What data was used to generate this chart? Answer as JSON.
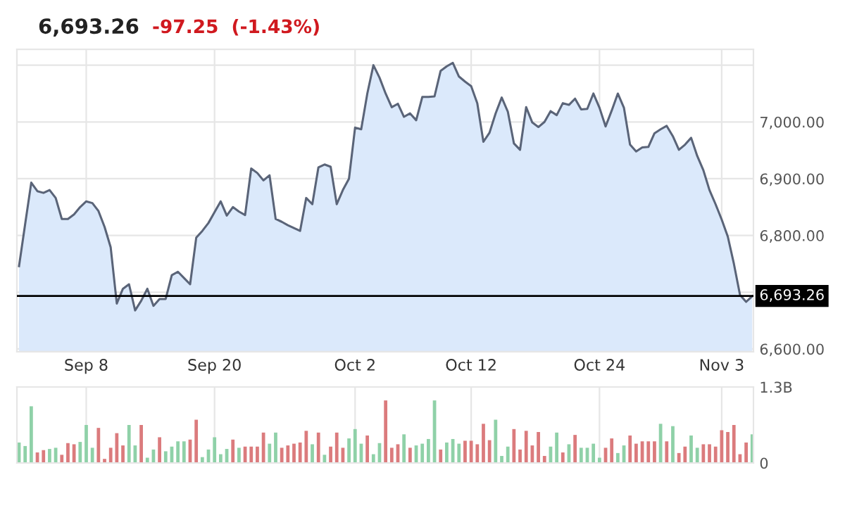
{
  "chart_data": [
    {
      "type": "area",
      "title": "6,693.26",
      "annotations": [
        "-97.25",
        "(-1.43%)"
      ],
      "categories": [
        null,
        null,
        null,
        null,
        null,
        null,
        null,
        null,
        null,
        null,
        null,
        "Sep 8",
        null,
        null,
        null,
        null,
        null,
        null,
        null,
        null,
        null,
        null,
        null,
        null,
        null,
        null,
        null,
        null,
        null,
        null,
        null,
        null,
        "Sep 20",
        null,
        null,
        null,
        null,
        null,
        null,
        null,
        null,
        null,
        null,
        null,
        null,
        null,
        null,
        null,
        null,
        null,
        null,
        null,
        null,
        null,
        null,
        "Oct 2",
        null,
        null,
        null,
        null,
        null,
        null,
        null,
        null,
        null,
        null,
        null,
        null,
        null,
        null,
        null,
        null,
        null,
        null,
        "Oct 12",
        null,
        null,
        null,
        null,
        null,
        null,
        null,
        null,
        null,
        null,
        null,
        null,
        null,
        null,
        null,
        null,
        null,
        null,
        null,
        null,
        "Oct 24",
        null,
        null,
        null,
        null,
        null,
        null,
        null,
        null,
        null,
        null,
        null,
        null,
        null,
        null,
        null,
        null,
        null,
        null,
        null,
        "Nov 3",
        null,
        null,
        null,
        null,
        null
      ],
      "series": [
        {
          "color": "#5a6478",
          "values": [
            6746,
            6820,
            6893,
            6878,
            6875,
            6880,
            6866,
            6829,
            6829,
            6837,
            6850,
            6860,
            6857,
            6843,
            6815,
            6779,
            6680,
            6706,
            6714,
            6668,
            6685,
            6706,
            6676,
            6688,
            6688,
            6730,
            6736,
            6725,
            6714,
            6796,
            6808,
            6822,
            6841,
            6860,
            6835,
            6850,
            6842,
            6836,
            6918,
            6910,
            6897,
            6906,
            6829,
            6824,
            6818,
            6813,
            6808,
            6866,
            6855,
            6920,
            6925,
            6921,
            6855,
            6880,
            6900,
            6990,
            6987,
            7050,
            7100,
            7078,
            7050,
            7026,
            7032,
            7009,
            7015,
            7003,
            7044,
            7044,
            7045,
            7090,
            7098,
            7104,
            7080,
            7071,
            7063,
            7033,
            6965,
            6981,
            7015,
            7043,
            7018,
            6962,
            6951,
            7026,
            6999,
            6991,
            7000,
            7019,
            7012,
            7033,
            7030,
            7041,
            7022,
            7023,
            7050,
            7025,
            6992,
            7020,
            7050,
            7025,
            6960,
            6948,
            6955,
            6956,
            6980,
            6987,
            6993,
            6975,
            6951,
            6960,
            6972,
            6940,
            6915,
            6880,
            6855,
            6828,
            6798,
            6750,
            6695,
            6683,
            6693
          ]
        }
      ],
      "ylim": [
        6595,
        7128
      ],
      "yticks": [
        {
          "value": 6600,
          "label": "6,600.00"
        },
        {
          "value": 6700,
          "label": null
        },
        {
          "value": 6800,
          "label": "6,800.00"
        },
        {
          "value": 6900,
          "label": "6,900.00"
        },
        {
          "value": 7000,
          "label": "7,000.00"
        },
        {
          "value": 7100,
          "label": null
        }
      ],
      "ref_lines": [
        {
          "axis": "y",
          "value": 6693.26,
          "label": "6,693.26",
          "color": "#000000"
        }
      ],
      "grid": true
    },
    {
      "type": "bar",
      "categories": [
        null,
        null,
        null,
        null,
        null,
        null,
        null,
        null,
        null,
        null,
        null,
        null,
        null,
        null,
        null,
        null,
        null,
        null,
        null,
        null,
        null,
        null,
        null,
        null,
        null,
        null,
        null,
        null,
        null,
        null,
        null,
        null,
        null,
        null,
        null,
        null,
        null,
        null,
        null,
        null,
        null,
        null,
        null,
        null,
        null,
        null,
        null,
        null,
        null,
        null,
        null,
        null,
        null,
        null,
        null,
        null,
        null,
        null,
        null,
        null,
        null,
        null,
        null,
        null,
        null,
        null,
        null,
        null,
        null,
        null,
        null,
        null,
        null,
        null,
        null,
        null,
        null,
        null,
        null,
        null,
        null,
        null,
        null,
        null,
        null,
        null,
        null,
        null,
        null,
        null,
        null,
        null,
        null,
        null,
        null,
        null,
        null,
        null,
        null,
        null,
        null,
        null,
        null,
        null,
        null,
        null,
        null,
        null,
        null,
        null,
        null,
        null,
        null,
        null,
        null,
        null,
        null,
        null,
        null,
        null,
        null
      ],
      "values": [
        0.35,
        0.29,
        0.97,
        0.18,
        0.22,
        0.24,
        0.26,
        0.14,
        0.34,
        0.32,
        0.36,
        0.65,
        0.26,
        0.6,
        0.07,
        0.26,
        0.51,
        0.3,
        0.65,
        0.3,
        0.65,
        0.09,
        0.23,
        0.44,
        0.2,
        0.28,
        0.37,
        0.37,
        0.4,
        0.74,
        0.1,
        0.23,
        0.44,
        0.15,
        0.24,
        0.4,
        0.26,
        0.28,
        0.28,
        0.28,
        0.52,
        0.33,
        0.52,
        0.26,
        0.3,
        0.33,
        0.35,
        0.55,
        0.32,
        0.52,
        0.14,
        0.28,
        0.52,
        0.26,
        0.42,
        0.58,
        0.33,
        0.47,
        0.15,
        0.34,
        1.07,
        0.26,
        0.32,
        0.49,
        0.26,
        0.3,
        0.33,
        0.41,
        1.07,
        0.23,
        0.35,
        0.41,
        0.33,
        0.38,
        0.38,
        0.32,
        0.67,
        0.39,
        0.74,
        0.12,
        0.28,
        0.58,
        0.23,
        0.55,
        0.3,
        0.53,
        0.12,
        0.28,
        0.52,
        0.18,
        0.32,
        0.48,
        0.26,
        0.26,
        0.33,
        0.09,
        0.26,
        0.42,
        0.17,
        0.3,
        0.47,
        0.33,
        0.37,
        0.37,
        0.37,
        0.67,
        0.37,
        0.63,
        0.17,
        0.28,
        0.47,
        0.26,
        0.32,
        0.32,
        0.28,
        0.56,
        0.53,
        0.65,
        0.15,
        0.35,
        0.49
      ],
      "colors": [
        "#8fd1a8",
        "#8fd1a8",
        "#8fd1a8",
        "#db7b7d",
        "#db7b7d",
        "#8fd1a8",
        "#8fd1a8",
        "#db7b7d",
        "#db7b7d",
        "#db7b7d",
        "#8fd1a8",
        "#8fd1a8",
        "#8fd1a8",
        "#db7b7d",
        "#db7b7d",
        "#db7b7d",
        "#db7b7d",
        "#db7b7d",
        "#8fd1a8",
        "#8fd1a8",
        "#db7b7d",
        "#8fd1a8",
        "#8fd1a8",
        "#db7b7d",
        "#8fd1a8",
        "#8fd1a8",
        "#8fd1a8",
        "#8fd1a8",
        "#db7b7d",
        "#db7b7d",
        "#8fd1a8",
        "#8fd1a8",
        "#8fd1a8",
        "#8fd1a8",
        "#8fd1a8",
        "#db7b7d",
        "#8fd1a8",
        "#db7b7d",
        "#db7b7d",
        "#db7b7d",
        "#db7b7d",
        "#8fd1a8",
        "#8fd1a8",
        "#db7b7d",
        "#db7b7d",
        "#db7b7d",
        "#db7b7d",
        "#db7b7d",
        "#8fd1a8",
        "#db7b7d",
        "#8fd1a8",
        "#db7b7d",
        "#db7b7d",
        "#db7b7d",
        "#8fd1a8",
        "#8fd1a8",
        "#8fd1a8",
        "#db7b7d",
        "#8fd1a8",
        "#8fd1a8",
        "#db7b7d",
        "#db7b7d",
        "#db7b7d",
        "#8fd1a8",
        "#db7b7d",
        "#8fd1a8",
        "#8fd1a8",
        "#8fd1a8",
        "#8fd1a8",
        "#db7b7d",
        "#8fd1a8",
        "#8fd1a8",
        "#8fd1a8",
        "#db7b7d",
        "#db7b7d",
        "#db7b7d",
        "#db7b7d",
        "#db7b7d",
        "#8fd1a8",
        "#8fd1a8",
        "#8fd1a8",
        "#db7b7d",
        "#db7b7d",
        "#db7b7d",
        "#db7b7d",
        "#db7b7d",
        "#db7b7d",
        "#8fd1a8",
        "#8fd1a8",
        "#db7b7d",
        "#8fd1a8",
        "#db7b7d",
        "#8fd1a8",
        "#8fd1a8",
        "#8fd1a8",
        "#8fd1a8",
        "#db7b7d",
        "#db7b7d",
        "#8fd1a8",
        "#8fd1a8",
        "#db7b7d",
        "#db7b7d",
        "#db7b7d",
        "#db7b7d",
        "#db7b7d",
        "#8fd1a8",
        "#db7b7d",
        "#8fd1a8",
        "#db7b7d",
        "#db7b7d",
        "#8fd1a8",
        "#8fd1a8",
        "#db7b7d",
        "#db7b7d",
        "#db7b7d",
        "#db7b7d",
        "#db7b7d",
        "#db7b7d",
        "#db7b7d",
        "#db7b7d",
        "#8fd1a8"
      ],
      "ylim": [
        0,
        1.3
      ],
      "yticks": [
        0,
        {
          "value": 1.3,
          "label": "1.3B"
        }
      ],
      "grid": true,
      "tick_labels": "y"
    }
  ]
}
